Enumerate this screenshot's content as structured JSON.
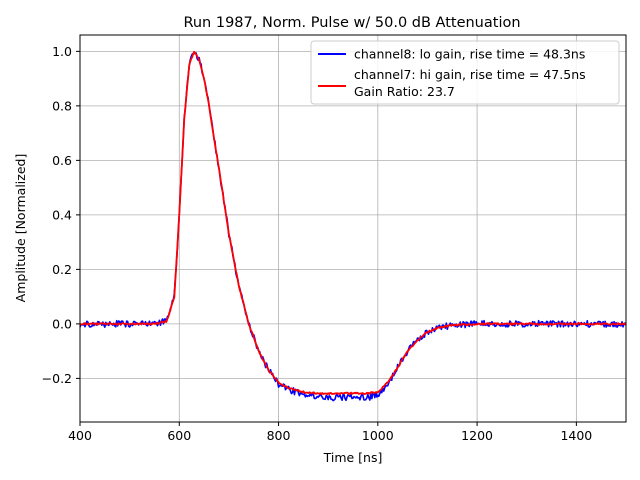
{
  "chart_data": {
    "type": "line",
    "title": "Run 1987, Norm. Pulse w/ 50.0 dB Attenuation",
    "xlabel": "Time [ns]",
    "ylabel": "Amplitude [Normalized]",
    "xlim": [
      400,
      1500
    ],
    "ylim": [
      -0.36,
      1.06
    ],
    "xticks": [
      400,
      600,
      800,
      1000,
      1200,
      1400
    ],
    "xtick_labels": [
      "400",
      "600",
      "800",
      "1000",
      "1200",
      "1400"
    ],
    "yticks": [
      -0.2,
      0.0,
      0.2,
      0.4,
      0.6,
      0.8,
      1.0
    ],
    "ytick_labels": [
      "−0.2",
      "0.0",
      "0.2",
      "0.4",
      "0.6",
      "0.8",
      "1.0"
    ],
    "grid": true,
    "legend_position": "top-right",
    "legend_extra": "Gain Ratio: 23.7",
    "series": [
      {
        "name": "channel8: lo gain, rise time = 48.3ns",
        "color": "#0000ff",
        "noise": 0.012,
        "x": [
          400,
          450,
          500,
          550,
          575,
          590,
          600,
          610,
          620,
          630,
          640,
          650,
          660,
          670,
          680,
          690,
          700,
          720,
          740,
          760,
          780,
          800,
          820,
          850,
          880,
          900,
          950,
          980,
          1000,
          1020,
          1040,
          1060,
          1080,
          1100,
          1120,
          1150,
          1200,
          1250,
          1300,
          1350,
          1400,
          1450,
          1500
        ],
        "y": [
          0.0,
          0.0,
          0.0,
          0.0,
          0.01,
          0.1,
          0.4,
          0.75,
          0.95,
          1.0,
          0.97,
          0.9,
          0.8,
          0.68,
          0.57,
          0.45,
          0.33,
          0.14,
          0.0,
          -0.1,
          -0.17,
          -0.22,
          -0.24,
          -0.26,
          -0.27,
          -0.27,
          -0.27,
          -0.27,
          -0.26,
          -0.22,
          -0.16,
          -0.1,
          -0.06,
          -0.03,
          -0.015,
          -0.005,
          0.0,
          0.0,
          0.0,
          0.0,
          0.0,
          0.0,
          0.0
        ]
      },
      {
        "name": "channel7: hi gain, rise time = 47.5ns",
        "color": "#ff0000",
        "noise": 0.003,
        "x": [
          400,
          450,
          500,
          550,
          575,
          590,
          600,
          610,
          620,
          630,
          640,
          650,
          660,
          670,
          680,
          690,
          700,
          720,
          740,
          760,
          780,
          800,
          820,
          850,
          880,
          900,
          950,
          980,
          1000,
          1020,
          1040,
          1060,
          1080,
          1100,
          1120,
          1150,
          1200,
          1250,
          1300,
          1350,
          1400,
          1450,
          1500
        ],
        "y": [
          0.0,
          0.0,
          0.0,
          0.0,
          0.01,
          0.1,
          0.4,
          0.75,
          0.95,
          1.0,
          0.97,
          0.9,
          0.8,
          0.68,
          0.57,
          0.45,
          0.33,
          0.14,
          0.0,
          -0.1,
          -0.17,
          -0.215,
          -0.235,
          -0.25,
          -0.255,
          -0.255,
          -0.255,
          -0.255,
          -0.25,
          -0.215,
          -0.16,
          -0.1,
          -0.06,
          -0.03,
          -0.015,
          -0.005,
          0.0,
          0.0,
          0.0,
          0.0,
          0.0,
          0.0,
          0.0
        ]
      }
    ]
  }
}
